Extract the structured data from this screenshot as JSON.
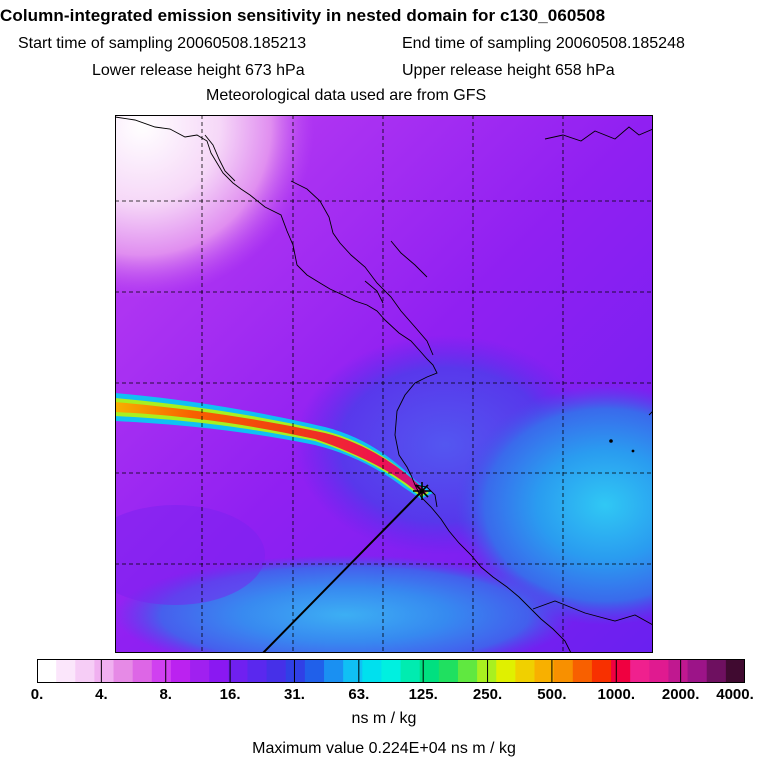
{
  "title": "Column-integrated emission sensitivity in nested domain for c130_060508",
  "sampling": {
    "start": "Start time of sampling 20060508.185213",
    "end": "End time of sampling 20060508.185248"
  },
  "release": {
    "lower": "Lower release height  673 hPa",
    "upper": "Upper release height  658 hPa"
  },
  "meteo": "Meteorological data used are from GFS",
  "colorbar": {
    "ticks": [
      "0.",
      "4.",
      "8.",
      "16.",
      "31.",
      "63.",
      "125.",
      "250.",
      "500.",
      "1000.",
      "2000.",
      "4000."
    ],
    "units": "ns m / kg",
    "colors": [
      "#ffffff",
      "#fbe6fb",
      "#f6cdf6",
      "#f0b0f0",
      "#e68ae6",
      "#dd66e6",
      "#d040f0",
      "#bb22f0",
      "#a020f0",
      "#8a18f2",
      "#7020f0",
      "#5a28ee",
      "#4630e8",
      "#3040e6",
      "#2060ea",
      "#1a90f2",
      "#10c0f4",
      "#00e0ee",
      "#00f0e0",
      "#00ecb0",
      "#00e080",
      "#20e060",
      "#60e840",
      "#a8f020",
      "#e0f000",
      "#f0d000",
      "#f8b000",
      "#f89000",
      "#f86000",
      "#f83000",
      "#f00040",
      "#f0208e",
      "#e01a90",
      "#c01890",
      "#9c1488",
      "#6e1060",
      "#400a30"
    ]
  },
  "max_value": "Maximum value  0.224E+04 ns m / kg"
}
